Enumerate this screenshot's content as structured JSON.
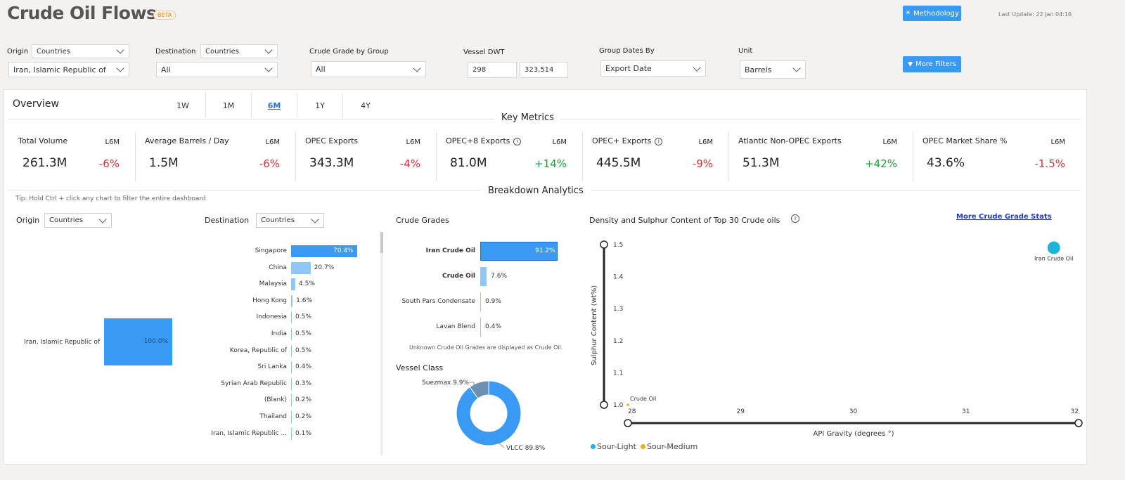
{
  "header": {
    "title": "Crude Oil Flows",
    "badge": "BETA",
    "methodology_label": "Methodology",
    "more_filters_label": "More Filters",
    "last_update": "Last Update: 22 Jan 04:16"
  },
  "filters": {
    "origin": {
      "label": "Origin",
      "type_value": "Countries",
      "value": "Iran, Islamic Republic of"
    },
    "destination": {
      "label": "Destination",
      "type_value": "Countries",
      "value": "All"
    },
    "crude_grade": {
      "label": "Crude Grade by Group",
      "value": "All"
    },
    "vessel_dwt": {
      "label": "Vessel DWT",
      "min": "298",
      "max": "323,514"
    },
    "group_dates": {
      "label": "Group Dates By",
      "value": "Export Date"
    },
    "unit": {
      "label": "Unit",
      "value": "Barrels"
    }
  },
  "overview": {
    "title": "Overview",
    "tabs": [
      "1W",
      "1M",
      "6M",
      "1Y",
      "4Y"
    ],
    "active_tab": "6M",
    "key_metrics_title": "Key Metrics",
    "metrics": [
      {
        "name": "Total Volume",
        "period": "L6M",
        "value": "261.3M",
        "change": "-6%",
        "dir": "neg",
        "info": false
      },
      {
        "name": "Average Barrels / Day",
        "period": "L6M",
        "value": "1.5M",
        "change": "-6%",
        "dir": "neg",
        "info": false
      },
      {
        "name": "OPEC Exports",
        "period": "L6M",
        "value": "343.3M",
        "change": "-4%",
        "dir": "neg",
        "info": false
      },
      {
        "name": "OPEC+8 Exports",
        "period": "L6M",
        "value": "81.0M",
        "change": "+14%",
        "dir": "pos",
        "info": true
      },
      {
        "name": "OPEC+ Exports",
        "period": "L6M",
        "value": "445.5M",
        "change": "-9%",
        "dir": "neg",
        "info": true
      },
      {
        "name": "Atlantic Non-OPEC Exports",
        "period": "L6M",
        "value": "51.3M",
        "change": "+42%",
        "dir": "pos",
        "info": false
      },
      {
        "name": "OPEC Market Share %",
        "period": "L6M",
        "value": "43.6%",
        "change": "-1.5%",
        "dir": "neg",
        "info": false
      }
    ],
    "breakdown_title": "Breakdown Analytics",
    "tip": "Tip: Hold Ctrl + click any chart to filter the entire dashboard"
  },
  "origin_chart": {
    "label": "Origin",
    "type_value": "Countries",
    "country": "Iran, Islamic Republic of",
    "value_label": "100.0%",
    "share": 100.0
  },
  "destination_chart": {
    "label": "Destination",
    "type_value": "Countries",
    "rows": [
      {
        "name": "Singapore",
        "value": 70.4,
        "label": "70.4%"
      },
      {
        "name": "China",
        "value": 20.7,
        "label": "20.7%"
      },
      {
        "name": "Malaysia",
        "value": 4.5,
        "label": "4.5%"
      },
      {
        "name": "Hong Kong",
        "value": 1.6,
        "label": "1.6%"
      },
      {
        "name": "Indonesia",
        "value": 0.5,
        "label": "0.5%"
      },
      {
        "name": "India",
        "value": 0.5,
        "label": "0.5%"
      },
      {
        "name": "Korea, Republic of",
        "value": 0.5,
        "label": "0.5%"
      },
      {
        "name": "Sri Lanka",
        "value": 0.4,
        "label": "0.4%"
      },
      {
        "name": "Syrian Arab Republic",
        "value": 0.3,
        "label": "0.3%"
      },
      {
        "name": "(Blank)",
        "value": 0.2,
        "label": "0.2%"
      },
      {
        "name": "Thailand",
        "value": 0.2,
        "label": "0.2%"
      },
      {
        "name": "Iran, Islamic Republic ...",
        "value": 0.1,
        "label": "0.1%"
      }
    ]
  },
  "crude_grades": {
    "title": "Crude Grades",
    "rows": [
      {
        "name": "Iran Crude Oil",
        "value": 91.2,
        "label": "91.2%",
        "bold": true
      },
      {
        "name": "Crude Oil",
        "value": 7.6,
        "label": "7.6%",
        "bold": true
      },
      {
        "name": "South Pars Condensate",
        "value": 0.9,
        "label": "0.9%",
        "bold": false
      },
      {
        "name": "Lavan Blend",
        "value": 0.4,
        "label": "0.4%",
        "bold": false
      }
    ],
    "note": "Unknown Crude Oil Grades are displayed as Crude Oil."
  },
  "vessel_class": {
    "title": "Vessel Class",
    "slices": [
      {
        "name": "VLCC",
        "value": 89.8,
        "label": "VLCC 89.8%",
        "color": "#3a99f3"
      },
      {
        "name": "Suezmax",
        "value": 9.9,
        "label": "Suezmax 9.9%",
        "color": "#6d8fb4"
      }
    ]
  },
  "chart_data": {
    "type": "scatter",
    "title": "Density and Sulphur Content of Top 30 Crude oils",
    "link_label": "More Crude Grade Stats",
    "xlabel": "API Gravity (degrees °)",
    "ylabel": "Sulphur Content (wt%)",
    "xlim": [
      28,
      32
    ],
    "ylim": [
      1.0,
      1.5
    ],
    "x_ticks": [
      "28",
      "29",
      "30",
      "31",
      "32"
    ],
    "y_ticks": [
      "1.0",
      "1.1",
      "1.2",
      "1.3",
      "1.4",
      "1.5"
    ],
    "points": [
      {
        "name": "Iran Crude Oil",
        "x": 31.78,
        "y": 1.49,
        "series": "Sour-Light",
        "size": "large"
      },
      {
        "name": "Crude Oil",
        "x": 28.0,
        "y": 1.0,
        "series": "Sour-Medium",
        "size": "small"
      }
    ],
    "legend": [
      {
        "name": "Sour-Light",
        "color": "#1fb3d6"
      },
      {
        "name": "Sour-Medium",
        "color": "#e6b117"
      }
    ]
  }
}
